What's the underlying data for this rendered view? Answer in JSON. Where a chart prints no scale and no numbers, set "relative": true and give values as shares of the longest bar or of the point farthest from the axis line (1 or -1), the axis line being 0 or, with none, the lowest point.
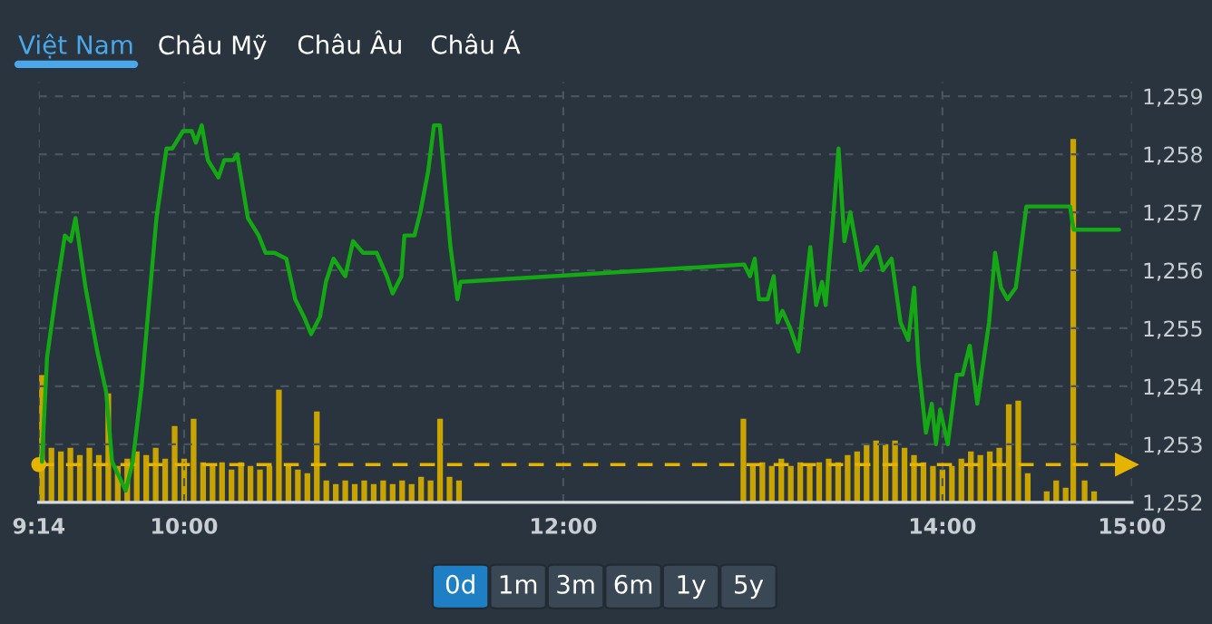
{
  "chart_data": [
    {
      "type": "line",
      "color": "#14a814",
      "x": [
        9.25,
        9.277,
        9.324,
        9.371,
        9.402,
        9.427,
        9.48,
        9.542,
        9.589,
        9.62,
        9.692,
        9.729,
        9.776,
        9.854,
        9.907,
        9.938,
        9.994,
        10.04,
        10.062,
        10.093,
        10.125,
        10.181,
        10.212,
        10.259,
        10.28,
        10.336,
        10.393,
        10.43,
        10.477,
        10.539,
        10.586,
        10.632,
        10.67,
        10.717,
        10.748,
        10.788,
        10.85,
        10.891,
        10.944,
        11.016,
        11.069,
        11.1,
        11.146,
        11.162,
        11.215,
        11.246,
        11.287,
        11.318,
        11.349,
        11.405,
        11.442,
        11.458,
        12.954,
        12.985,
        13.01,
        13.032,
        13.078,
        13.11,
        13.131,
        13.156,
        13.197,
        13.24,
        13.303,
        13.334,
        13.365,
        13.384,
        13.421,
        13.452,
        13.483,
        13.514,
        13.57,
        13.655,
        13.686,
        13.732,
        13.779,
        13.82,
        13.851,
        13.873,
        13.913,
        13.944,
        13.966,
        13.988,
        14.028,
        14.075,
        14.106,
        14.144,
        14.184,
        14.246,
        14.278,
        14.309,
        14.343,
        14.387,
        14.443,
        14.673,
        14.692,
        14.932
      ],
      "values": [
        1252.7,
        1254.5,
        1255.6,
        1256.6,
        1256.5,
        1256.9,
        1255.7,
        1254.6,
        1253.9,
        1252.7,
        1252.2,
        1252.7,
        1254.0,
        1256.9,
        1258.1,
        1258.1,
        1258.4,
        1258.4,
        1258.2,
        1258.5,
        1257.9,
        1257.6,
        1257.9,
        1257.9,
        1258.0,
        1256.9,
        1256.6,
        1256.3,
        1256.3,
        1256.2,
        1255.5,
        1255.2,
        1254.9,
        1255.2,
        1255.8,
        1256.2,
        1255.9,
        1256.5,
        1256.3,
        1256.3,
        1255.9,
        1255.6,
        1255.9,
        1256.6,
        1256.6,
        1257.0,
        1257.7,
        1258.5,
        1258.5,
        1256.4,
        1255.5,
        1255.8,
        1256.1,
        1255.9,
        1256.2,
        1255.5,
        1255.5,
        1255.9,
        1255.1,
        1255.3,
        1255.0,
        1254.6,
        1256.4,
        1255.4,
        1255.8,
        1255.4,
        1256.8,
        1258.1,
        1256.5,
        1257.0,
        1256.0,
        1256.4,
        1256.0,
        1256.2,
        1255.1,
        1254.8,
        1255.7,
        1254.4,
        1253.2,
        1253.7,
        1253.0,
        1253.6,
        1253.0,
        1254.2,
        1254.2,
        1254.7,
        1253.7,
        1255.1,
        1256.3,
        1255.7,
        1255.5,
        1255.7,
        1257.1,
        1257.1,
        1256.7,
        1256.7
      ],
      "xlim": [
        9.2333,
        15
      ],
      "ylim": [
        1252,
        1259.25
      ],
      "xticks": [
        {
          "value": 9.2333,
          "label": "9:14"
        },
        {
          "value": 10,
          "label": "10:00"
        },
        {
          "value": 12,
          "label": "12:00"
        },
        {
          "value": 14,
          "label": "14:00"
        },
        {
          "value": 15,
          "label": "15:00"
        }
      ],
      "yticks": [
        {
          "value": 1252,
          "label": "1,252"
        },
        {
          "value": 1253,
          "label": "1,253"
        },
        {
          "value": 1254,
          "label": "1,254"
        },
        {
          "value": 1255,
          "label": "1,255"
        },
        {
          "value": 1256,
          "label": "1,256"
        },
        {
          "value": 1257,
          "label": "1,257"
        },
        {
          "value": 1258,
          "label": "1,258"
        },
        {
          "value": 1259,
          "label": "1,259"
        }
      ],
      "grid": true,
      "legend": false,
      "ref_lines": [
        {
          "axis": "y",
          "value": 1252.65,
          "color": "#e6b400",
          "line_style": "dashed"
        }
      ],
      "annotations": [
        "Việt Nam",
        "Châu Mỹ",
        "Châu Âu",
        "Châu Á",
        "0d",
        "1m",
        "3m",
        "6m",
        "1y",
        "5y"
      ]
    },
    {
      "type": "bar",
      "color": "#c9a400",
      "relative": true,
      "tick_labels": false,
      "xlim": [
        9.2333,
        15
      ],
      "x": [
        9.25,
        9.3,
        9.35,
        9.4,
        9.45,
        9.5,
        9.55,
        9.6,
        9.65,
        9.7,
        9.75,
        9.8,
        9.85,
        9.9,
        9.95,
        10.0,
        10.05,
        10.1,
        10.15,
        10.2,
        10.25,
        10.3,
        10.35,
        10.4,
        10.45,
        10.5,
        10.55,
        10.6,
        10.65,
        10.7,
        10.75,
        10.8,
        10.85,
        10.9,
        10.95,
        11.0,
        11.05,
        11.1,
        11.15,
        11.2,
        11.25,
        11.3,
        11.35,
        11.4,
        11.45,
        12.95,
        13.0,
        13.05,
        13.1,
        13.15,
        13.2,
        13.25,
        13.3,
        13.35,
        13.4,
        13.45,
        13.5,
        13.55,
        13.6,
        13.65,
        13.7,
        13.75,
        13.8,
        13.85,
        13.9,
        13.95,
        14.0,
        14.05,
        14.1,
        14.15,
        14.2,
        14.25,
        14.3,
        14.35,
        14.4,
        14.45,
        14.55,
        14.6,
        14.65,
        14.69,
        14.75,
        14.8
      ],
      "values": [
        0.35,
        0.15,
        0.14,
        0.15,
        0.13,
        0.15,
        0.13,
        0.3,
        0.1,
        0.12,
        0.14,
        0.13,
        0.15,
        0.12,
        0.21,
        0.12,
        0.23,
        0.11,
        0.1,
        0.11,
        0.09,
        0.11,
        0.1,
        0.09,
        0.1,
        0.31,
        0.1,
        0.09,
        0.08,
        0.25,
        0.06,
        0.05,
        0.06,
        0.05,
        0.06,
        0.05,
        0.06,
        0.05,
        0.06,
        0.05,
        0.07,
        0.06,
        0.23,
        0.07,
        0.06,
        0.23,
        0.1,
        0.11,
        0.1,
        0.12,
        0.1,
        0.11,
        0.1,
        0.11,
        0.12,
        0.11,
        0.13,
        0.14,
        0.16,
        0.17,
        0.16,
        0.17,
        0.15,
        0.13,
        0.11,
        0.1,
        0.09,
        0.1,
        0.12,
        0.14,
        0.13,
        0.14,
        0.15,
        0.27,
        0.28,
        0.08,
        0.03,
        0.06,
        0.04,
        1.0,
        0.06,
        0.03
      ]
    }
  ]
}
